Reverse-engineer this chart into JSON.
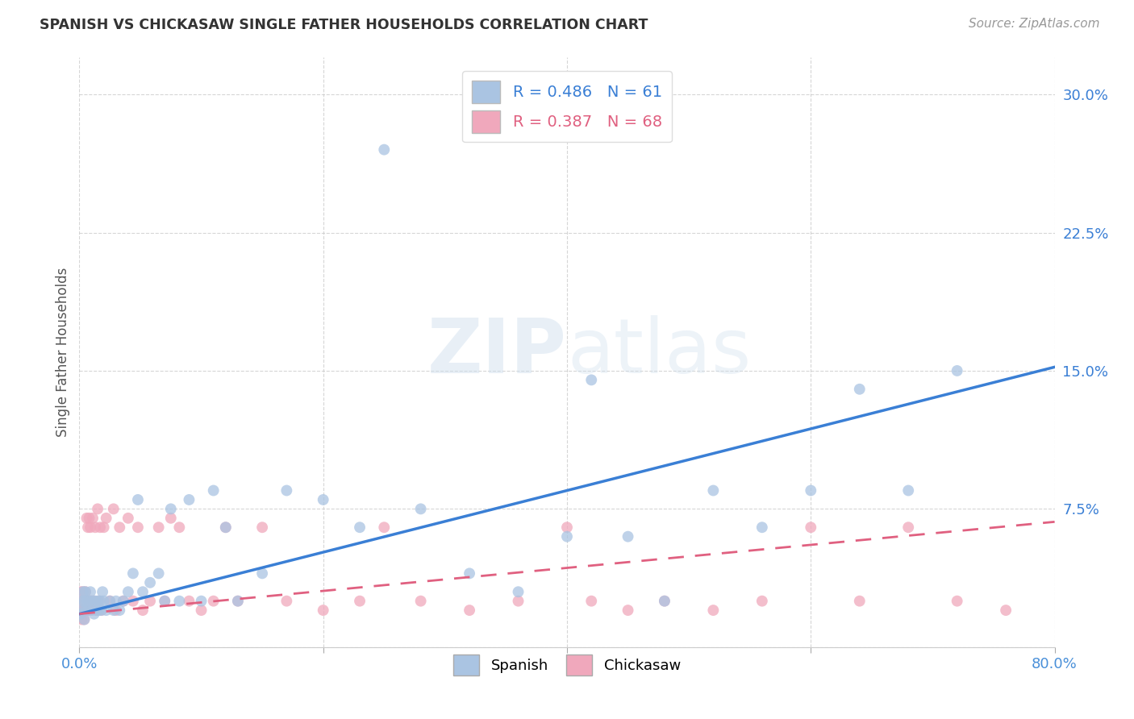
{
  "title": "SPANISH VS CHICKASAW SINGLE FATHER HOUSEHOLDS CORRELATION CHART",
  "source": "Source: ZipAtlas.com",
  "ylabel": "Single Father Households",
  "xlim": [
    0.0,
    0.8
  ],
  "ylim": [
    0.0,
    0.32
  ],
  "xtick_positions": [
    0.0,
    0.2,
    0.4,
    0.6,
    0.8
  ],
  "xtick_labels": [
    "0.0%",
    "",
    "",
    "",
    "80.0%"
  ],
  "ytick_positions": [
    0.0,
    0.075,
    0.15,
    0.225,
    0.3
  ],
  "ytick_labels": [
    "",
    "7.5%",
    "15.0%",
    "22.5%",
    "30.0%"
  ],
  "spanish_R": 0.486,
  "spanish_N": 61,
  "chickasaw_R": 0.387,
  "chickasaw_N": 68,
  "spanish_color": "#aac4e2",
  "chickasaw_color": "#f0a8bc",
  "spanish_line_color": "#3a7fd5",
  "chickasaw_line_color": "#e06080",
  "background_color": "#ffffff",
  "spanish_x": [
    0.001,
    0.002,
    0.003,
    0.003,
    0.004,
    0.004,
    0.005,
    0.005,
    0.006,
    0.007,
    0.008,
    0.009,
    0.01,
    0.011,
    0.012,
    0.013,
    0.014,
    0.015,
    0.016,
    0.017,
    0.018,
    0.019,
    0.02,
    0.022,
    0.025,
    0.028,
    0.03,
    0.033,
    0.036,
    0.04,
    0.044,
    0.048,
    0.052,
    0.058,
    0.065,
    0.07,
    0.075,
    0.082,
    0.09,
    0.1,
    0.11,
    0.12,
    0.13,
    0.15,
    0.17,
    0.2,
    0.23,
    0.25,
    0.28,
    0.32,
    0.36,
    0.4,
    0.42,
    0.45,
    0.48,
    0.52,
    0.56,
    0.6,
    0.64,
    0.68,
    0.72
  ],
  "spanish_y": [
    0.018,
    0.025,
    0.02,
    0.03,
    0.015,
    0.025,
    0.02,
    0.03,
    0.025,
    0.02,
    0.025,
    0.03,
    0.02,
    0.025,
    0.018,
    0.025,
    0.02,
    0.025,
    0.02,
    0.025,
    0.02,
    0.03,
    0.025,
    0.02,
    0.025,
    0.02,
    0.025,
    0.02,
    0.025,
    0.03,
    0.04,
    0.08,
    0.03,
    0.035,
    0.04,
    0.025,
    0.075,
    0.025,
    0.08,
    0.025,
    0.085,
    0.065,
    0.025,
    0.04,
    0.085,
    0.08,
    0.065,
    0.27,
    0.075,
    0.04,
    0.03,
    0.06,
    0.145,
    0.06,
    0.025,
    0.085,
    0.065,
    0.085,
    0.14,
    0.085,
    0.15
  ],
  "chickasaw_x": [
    0.001,
    0.001,
    0.002,
    0.002,
    0.003,
    0.003,
    0.004,
    0.004,
    0.005,
    0.005,
    0.006,
    0.006,
    0.007,
    0.007,
    0.008,
    0.008,
    0.009,
    0.009,
    0.01,
    0.01,
    0.011,
    0.012,
    0.013,
    0.014,
    0.015,
    0.016,
    0.017,
    0.018,
    0.02,
    0.022,
    0.025,
    0.028,
    0.03,
    0.033,
    0.036,
    0.04,
    0.044,
    0.048,
    0.052,
    0.058,
    0.065,
    0.07,
    0.075,
    0.082,
    0.09,
    0.1,
    0.11,
    0.12,
    0.13,
    0.15,
    0.17,
    0.2,
    0.23,
    0.25,
    0.28,
    0.32,
    0.36,
    0.4,
    0.42,
    0.45,
    0.48,
    0.52,
    0.56,
    0.6,
    0.64,
    0.68,
    0.72,
    0.76
  ],
  "chickasaw_y": [
    0.02,
    0.03,
    0.015,
    0.025,
    0.02,
    0.03,
    0.015,
    0.025,
    0.02,
    0.03,
    0.02,
    0.07,
    0.025,
    0.065,
    0.02,
    0.07,
    0.025,
    0.065,
    0.02,
    0.025,
    0.07,
    0.025,
    0.065,
    0.02,
    0.075,
    0.025,
    0.065,
    0.02,
    0.065,
    0.07,
    0.025,
    0.075,
    0.02,
    0.065,
    0.025,
    0.07,
    0.025,
    0.065,
    0.02,
    0.025,
    0.065,
    0.025,
    0.07,
    0.065,
    0.025,
    0.02,
    0.025,
    0.065,
    0.025,
    0.065,
    0.025,
    0.02,
    0.025,
    0.065,
    0.025,
    0.02,
    0.025,
    0.065,
    0.025,
    0.02,
    0.025,
    0.02,
    0.025,
    0.065,
    0.025,
    0.065,
    0.025,
    0.02
  ],
  "sp_line_x": [
    0.0,
    0.8
  ],
  "sp_line_y": [
    0.018,
    0.152
  ],
  "ch_line_x": [
    0.0,
    0.8
  ],
  "ch_line_y": [
    0.018,
    0.068
  ]
}
